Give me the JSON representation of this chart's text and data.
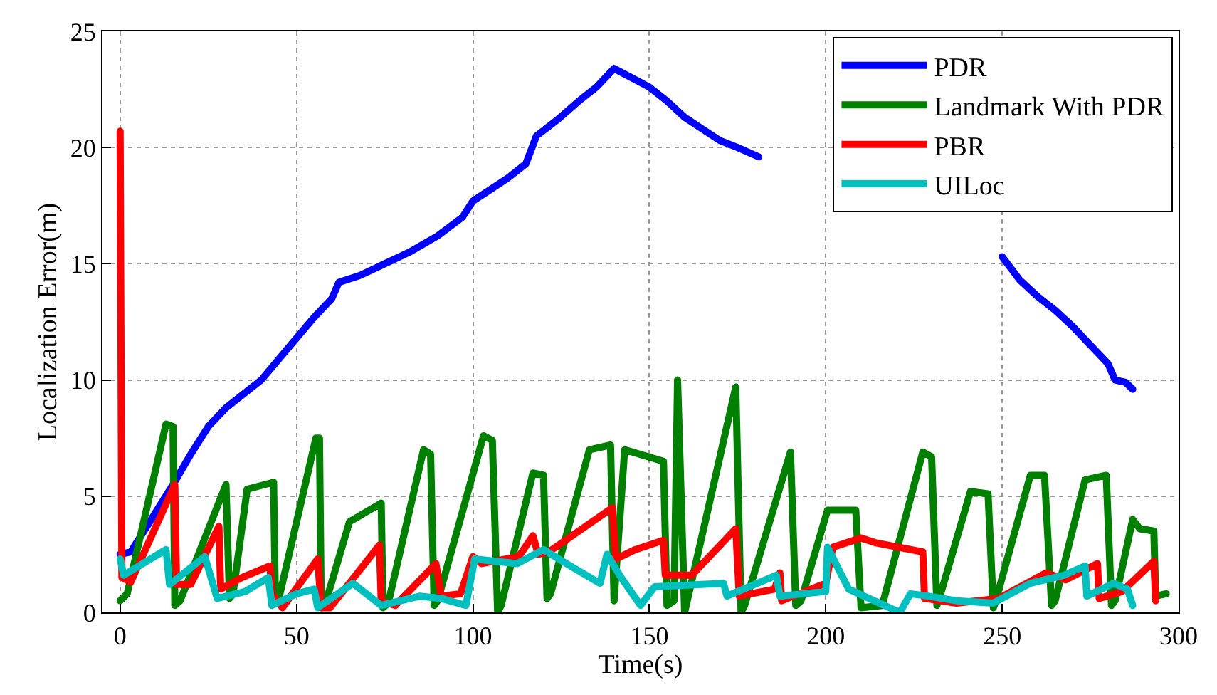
{
  "chart_data": {
    "type": "line",
    "xlabel": "Time(s)",
    "ylabel": "Localization Error(m)",
    "xlim": [
      -5,
      300
    ],
    "ylim": [
      0,
      25
    ],
    "xticks": [
      0,
      50,
      100,
      150,
      200,
      250,
      300
    ],
    "yticks": [
      0,
      5,
      10,
      15,
      20,
      25
    ],
    "grid": true,
    "legend": "top right",
    "line_style": "solid",
    "marker": "none",
    "series": [
      {
        "name": "PDR",
        "color": "#0000ff",
        "x": [
          0,
          3,
          8,
          15,
          20,
          25,
          30,
          40,
          50,
          55,
          60,
          62,
          68,
          75,
          82,
          90,
          97,
          100,
          105,
          110,
          115,
          118,
          124,
          130,
          135,
          140,
          145,
          150,
          155,
          160,
          165,
          170,
          175,
          181,
          183,
          248,
          250,
          255,
          260,
          265,
          270,
          275,
          280,
          282,
          285,
          287
        ],
        "values": [
          2.5,
          2.6,
          3.8,
          5.5,
          6.8,
          8,
          8.8,
          10,
          11.8,
          12.7,
          13.5,
          14.2,
          14.5,
          15,
          15.5,
          16.2,
          17,
          17.7,
          18.2,
          18.7,
          19.3,
          20.5,
          21.2,
          22,
          22.6,
          23.4,
          23,
          22.6,
          22,
          21.3,
          20.8,
          20.3,
          20,
          19.6,
          null,
          null,
          15.3,
          14.3,
          13.6,
          13,
          12.3,
          11.5,
          10.7,
          10,
          9.9,
          9.6
        ]
      },
      {
        "name": "Landmark With PDR",
        "color": "#008000",
        "x": [
          0,
          2,
          13,
          15,
          15.5,
          17,
          30,
          31,
          32,
          36,
          43.5,
          44,
          45,
          55.5,
          56.5,
          57,
          59,
          65,
          74,
          74.5,
          76,
          86,
          88,
          89,
          90,
          103,
          105.5,
          107,
          108,
          117,
          120,
          121,
          122,
          133,
          139,
          140,
          143,
          154,
          155,
          157,
          158,
          160,
          174.5,
          176,
          177,
          190,
          191.5,
          193,
          200.5,
          208.5,
          210,
          216,
          227.5,
          230,
          231.5,
          232,
          241,
          246,
          247.5,
          248,
          258,
          262,
          264,
          265,
          273.5,
          279.5,
          281,
          282,
          287,
          289,
          293,
          293.5,
          296.5
        ],
        "values": [
          0.5,
          0.8,
          8.1,
          8,
          0.3,
          0.5,
          5.5,
          0.6,
          0.8,
          5.3,
          5.6,
          0.5,
          0.6,
          7.5,
          7.5,
          0.2,
          0.8,
          3.9,
          4.7,
          0.2,
          0.4,
          7,
          6.8,
          0.3,
          0.5,
          7.6,
          7.4,
          0,
          0.3,
          6,
          5.9,
          0.6,
          0.8,
          7,
          7.2,
          0.5,
          7,
          6.5,
          0.3,
          0.5,
          10,
          0,
          9.7,
          0,
          0.3,
          6.9,
          0.3,
          0.5,
          4.4,
          4.4,
          0.2,
          0.3,
          6.9,
          6.7,
          0.3,
          0.5,
          5.2,
          5.1,
          0.2,
          0.4,
          5.9,
          5.9,
          0.3,
          0.5,
          5.7,
          5.9,
          0.3,
          0.5,
          4,
          3.6,
          3.5,
          0.7,
          0.8
        ]
      },
      {
        "name": "PBR",
        "color": "#ff0000",
        "x": [
          0,
          0.5,
          3,
          15.5,
          16,
          20,
          28,
          28.5,
          34.5,
          42.5,
          43,
          46,
          56,
          57,
          59.5,
          73.5,
          74,
          78,
          89.5,
          91,
          96.5,
          100,
          102.5,
          113,
          117,
          118.5,
          121.5,
          139.5,
          140.5,
          146,
          154,
          154.5,
          162,
          174.5,
          175.5,
          185.5,
          187,
          187.5,
          200,
          202,
          210,
          214,
          227.5,
          228,
          237,
          249,
          262.5,
          268,
          277,
          277.5,
          284,
          293,
          293.5
        ],
        "values": [
          20.7,
          1.5,
          1.3,
          5.5,
          1.2,
          1.2,
          3.7,
          1,
          1.5,
          2,
          0.8,
          0.2,
          2.3,
          0.2,
          0.2,
          2.9,
          0.5,
          0.3,
          2.1,
          0.7,
          0.8,
          2.4,
          2.1,
          2.4,
          3.3,
          2.5,
          2.6,
          4.5,
          2.3,
          2.7,
          3.1,
          1.6,
          1.6,
          3.6,
          0.7,
          1,
          1.7,
          0.5,
          1.25,
          2.8,
          3.2,
          3,
          2.6,
          0.6,
          0.4,
          0.6,
          1.7,
          1.4,
          2.1,
          0.6,
          0.9,
          2.2,
          0.5
        ]
      },
      {
        "name": "UILoc",
        "color": "#00bfbf",
        "x": [
          0,
          1,
          13,
          14,
          24,
          27.5,
          35.5,
          42,
          43,
          50,
          55,
          56,
          66,
          74,
          85,
          91,
          98,
          100.5,
          112.5,
          120,
          126.5,
          136,
          138,
          142,
          147.5,
          151.5,
          171,
          172,
          186,
          187,
          200,
          200.5,
          206.5,
          221,
          224,
          229,
          237,
          247.5,
          258,
          267.5,
          273.5,
          274,
          281.5,
          285.5,
          287
        ],
        "values": [
          2.3,
          1.6,
          2.7,
          1.2,
          2.4,
          0.6,
          0.9,
          1.5,
          0.3,
          0.8,
          1,
          0.2,
          1.25,
          0.3,
          0.7,
          0.6,
          0.3,
          2.3,
          2.1,
          2.7,
          2.1,
          1.25,
          2.5,
          1.5,
          0.3,
          1.1,
          1.25,
          0.7,
          1.6,
          0.7,
          0.9,
          2.8,
          1,
          0,
          0.8,
          0.7,
          0.5,
          0.4,
          1.25,
          1.6,
          2,
          0.7,
          1.25,
          1,
          0.3
        ]
      }
    ]
  }
}
